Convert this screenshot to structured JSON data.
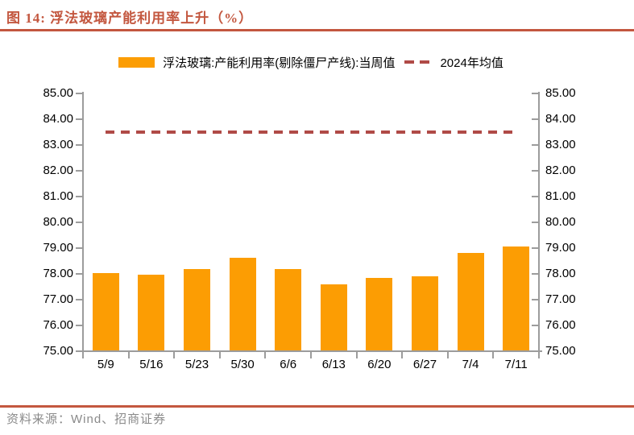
{
  "figure": {
    "title": "图 14:  浮法玻璃产能利用率上升（%）",
    "source": "资料来源：Wind、招商证券"
  },
  "legend": {
    "bar_series_label": "浮法玻璃:产能利用率(剔除僵尸产线):当周值",
    "mean_series_label": "2024年均值"
  },
  "colors": {
    "bar": "#fc9d03",
    "mean_line": "#b04a47",
    "title_accent": "#c3573f",
    "axis": "#9c9c9c",
    "source_text": "#8a8a8a"
  },
  "chart_data": {
    "type": "bar",
    "title": "浮法玻璃产能利用率上升（%）",
    "categories": [
      "5/9",
      "5/16",
      "5/23",
      "5/30",
      "6/6",
      "6/13",
      "6/20",
      "6/27",
      "7/4",
      "7/11"
    ],
    "series": [
      {
        "name": "浮法玻璃:产能利用率(剔除僵尸产线):当周值",
        "type": "bar",
        "values": [
          78.02,
          77.97,
          78.19,
          78.61,
          78.2,
          77.6,
          77.84,
          77.9,
          78.82,
          79.06
        ]
      },
      {
        "name": "2024年均值",
        "type": "dashed-line-constant",
        "value": 83.5
      }
    ],
    "xlabel": "",
    "ylabel": "",
    "ylim": [
      75.0,
      85.0
    ],
    "ytick_step": 1.0,
    "ytick_format_decimals": 2,
    "dual_axis_mirrored": true,
    "grid": false,
    "legend_position": "top-center"
  }
}
